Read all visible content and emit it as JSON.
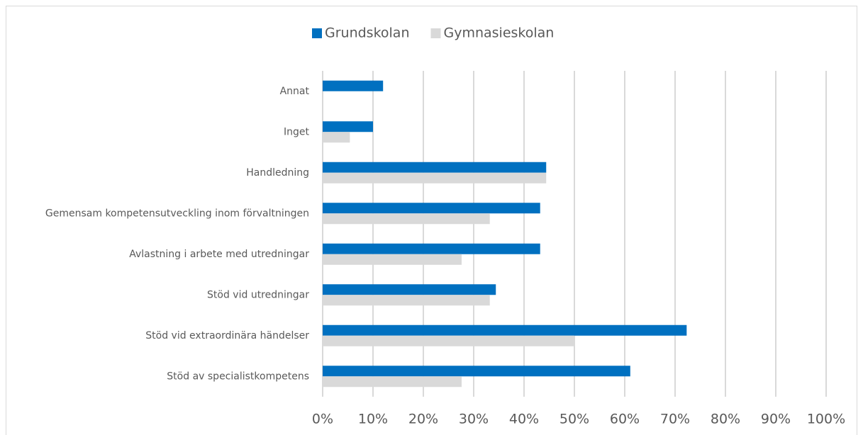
{
  "chart_data": {
    "type": "hbar",
    "categories": [
      "Annat",
      "Inget",
      "Handledning",
      "Gemensam kompetensutveckling inom förvaltningen",
      "Avlastning i arbete med utredningar",
      "Stöd vid utredningar",
      "Stöd vid extraordinära händelser",
      "Stöd av specialistkompetens"
    ],
    "series": [
      {
        "name": "Grundskolan",
        "color": "#0070c0",
        "values": [
          12,
          10,
          44.4,
          43.2,
          43.2,
          34.4,
          72.3,
          61.1
        ]
      },
      {
        "name": "Gymnasieskolan",
        "color": "#d9d9d9",
        "values": [
          0,
          5.4,
          44.4,
          33.2,
          27.6,
          33.2,
          50,
          27.6
        ]
      }
    ],
    "xlim": [
      0,
      100
    ],
    "xticks": [
      {
        "value": 0,
        "label": "0%"
      },
      {
        "value": 10,
        "label": "10%"
      },
      {
        "value": 20,
        "label": "20%"
      },
      {
        "value": 30,
        "label": "30%"
      },
      {
        "value": 40,
        "label": "40%"
      },
      {
        "value": 50,
        "label": "50%"
      },
      {
        "value": 60,
        "label": "60%"
      },
      {
        "value": 70,
        "label": "70%"
      },
      {
        "value": 80,
        "label": "80%"
      },
      {
        "value": 90,
        "label": "90%"
      },
      {
        "value": 100,
        "label": "100%"
      }
    ],
    "grid": true,
    "legend": "top"
  }
}
